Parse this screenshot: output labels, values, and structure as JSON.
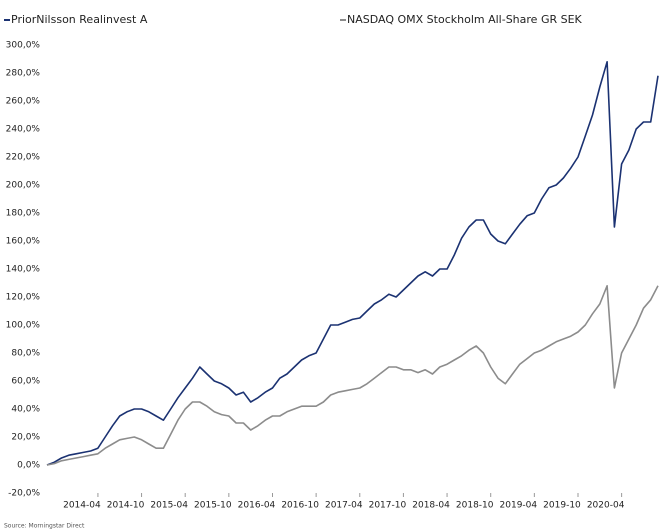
{
  "chart_data": {
    "type": "line",
    "source": "Source: Morningstar Direct",
    "x": [
      "2013-09",
      "2013-10",
      "2013-11",
      "2013-12",
      "2014-01",
      "2014-02",
      "2014-03",
      "2014-04",
      "2014-05",
      "2014-06",
      "2014-07",
      "2014-08",
      "2014-09",
      "2014-10",
      "2014-11",
      "2014-12",
      "2015-01",
      "2015-02",
      "2015-03",
      "2015-04",
      "2015-05",
      "2015-06",
      "2015-07",
      "2015-08",
      "2015-09",
      "2015-10",
      "2015-11",
      "2015-12",
      "2016-01",
      "2016-02",
      "2016-03",
      "2016-04",
      "2016-05",
      "2016-06",
      "2016-07",
      "2016-08",
      "2016-09",
      "2016-10",
      "2016-11",
      "2016-12",
      "2017-01",
      "2017-02",
      "2017-03",
      "2017-04",
      "2017-05",
      "2017-06",
      "2017-07",
      "2017-08",
      "2017-09",
      "2017-10",
      "2017-11",
      "2017-12",
      "2018-01",
      "2018-02",
      "2018-03",
      "2018-04",
      "2018-05",
      "2018-06",
      "2018-07",
      "2018-08",
      "2018-09",
      "2018-10",
      "2018-11",
      "2018-12",
      "2019-01",
      "2019-02",
      "2019-03",
      "2019-04",
      "2019-05",
      "2019-06",
      "2019-07",
      "2019-08",
      "2019-09",
      "2019-10",
      "2019-11",
      "2019-12",
      "2020-01",
      "2020-02",
      "2020-03",
      "2020-04",
      "2020-05",
      "2020-06",
      "2020-07",
      "2020-08",
      "2020-09"
    ],
    "xticks": [
      "2014-04",
      "2014-10",
      "2015-04",
      "2015-10",
      "2016-04",
      "2016-10",
      "2017-04",
      "2017-10",
      "2018-04",
      "2018-10",
      "2019-04",
      "2019-10",
      "2020-04"
    ],
    "series": [
      {
        "name": "PriorNilsson Realinvest A",
        "color": "#1b3272",
        "values": [
          0,
          2,
          5,
          7,
          8,
          9,
          10,
          12,
          20,
          28,
          35,
          38,
          40,
          40,
          38,
          35,
          32,
          40,
          48,
          55,
          62,
          70,
          65,
          60,
          58,
          55,
          50,
          52,
          45,
          48,
          52,
          55,
          62,
          65,
          70,
          75,
          78,
          80,
          90,
          100,
          100,
          102,
          104,
          105,
          110,
          115,
          118,
          122,
          120,
          125,
          130,
          135,
          138,
          135,
          140,
          140,
          150,
          162,
          170,
          175,
          175,
          165,
          160,
          158,
          165,
          172,
          178,
          180,
          190,
          198,
          200,
          205,
          212,
          220,
          235,
          250,
          270,
          288,
          170,
          215,
          225,
          240,
          245,
          245,
          278
        ]
      },
      {
        "name": "NASDAQ OMX Stockholm All-Share GR SEK",
        "color": "#8c8c8c",
        "values": [
          0,
          1,
          3,
          4,
          5,
          6,
          7,
          8,
          12,
          15,
          18,
          19,
          20,
          18,
          15,
          12,
          12,
          22,
          32,
          40,
          45,
          45,
          42,
          38,
          36,
          35,
          30,
          30,
          25,
          28,
          32,
          35,
          35,
          38,
          40,
          42,
          42,
          42,
          45,
          50,
          52,
          53,
          54,
          55,
          58,
          62,
          66,
          70,
          70,
          68,
          68,
          66,
          68,
          65,
          70,
          72,
          75,
          78,
          82,
          85,
          80,
          70,
          62,
          58,
          65,
          72,
          76,
          80,
          82,
          85,
          88,
          90,
          92,
          95,
          100,
          108,
          115,
          128,
          55,
          80,
          90,
          100,
          112,
          118,
          128
        ]
      }
    ],
    "ylim": [
      -20,
      300
    ],
    "yticks": [
      {
        "value": -20,
        "label": "-20,0%"
      },
      {
        "value": 0,
        "label": "0,0%"
      },
      {
        "value": 20,
        "label": "20,0%"
      },
      {
        "value": 40,
        "label": "40,0%"
      },
      {
        "value": 60,
        "label": "60,0%"
      },
      {
        "value": 80,
        "label": "80,0%"
      },
      {
        "value": 100,
        "label": "100,0%"
      },
      {
        "value": 120,
        "label": "120,0%"
      },
      {
        "value": 140,
        "label": "140,0%"
      },
      {
        "value": 160,
        "label": "160,0%"
      },
      {
        "value": 180,
        "label": "180,0%"
      },
      {
        "value": 200,
        "label": "200,0%"
      },
      {
        "value": 220,
        "label": "220,0%"
      },
      {
        "value": 240,
        "label": "240,0%"
      },
      {
        "value": 260,
        "label": "260,0%"
      },
      {
        "value": 280,
        "label": "280,0%"
      },
      {
        "value": 300,
        "label": "300,0%"
      }
    ]
  }
}
